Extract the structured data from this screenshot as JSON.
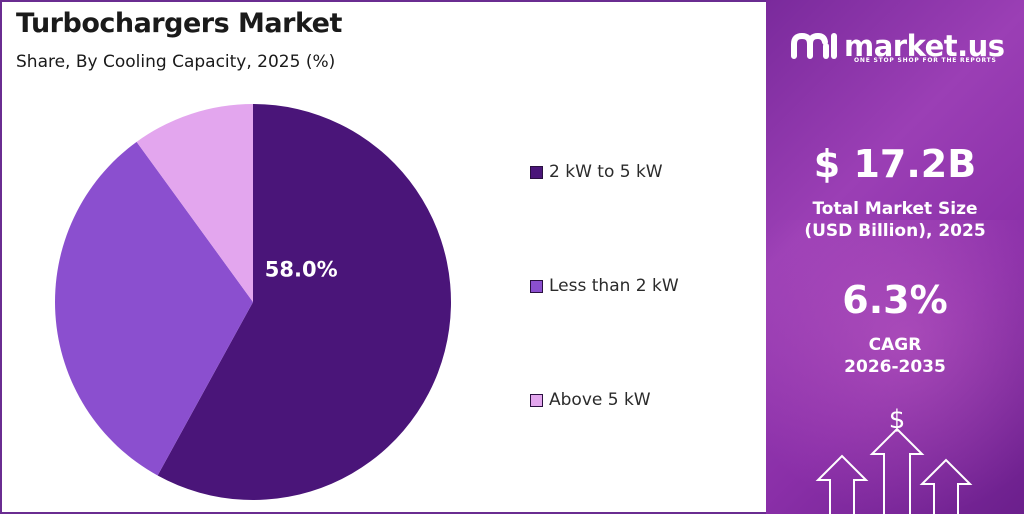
{
  "header": {
    "title": "Turbochargers Market",
    "subtitle": "Share, By Cooling Capacity, 2025 (%)"
  },
  "chart_data": {
    "type": "pie",
    "title": "Turbochargers Market",
    "subtitle": "Share, By Cooling Capacity, 2025 (%)",
    "categories": [
      "2 kW to 5 kW",
      "Less than 2 kW",
      "Above 5 kW"
    ],
    "values": [
      58.0,
      32.0,
      10.0
    ],
    "colors": [
      "#4a1579",
      "#8b4fcf",
      "#e3a6ee"
    ],
    "data_labels": [
      "58.0%",
      "",
      ""
    ],
    "legend": "right",
    "legend_items": [
      "2 kW to 5 kW",
      "Less than 2 kW",
      "Above 5 kW"
    ]
  },
  "sidebar": {
    "brand": "market.us",
    "tagline": "ONE STOP SHOP FOR THE REPORTS",
    "market_size_value": "$ 17.2B",
    "market_size_label_line1": "Total Market Size",
    "market_size_label_line2": "(USD Billion), 2025",
    "cagr_value": "6.3%",
    "cagr_label_line1": "CAGR",
    "cagr_label_line2": "2026-2035",
    "dollar_icon": "dollar-sign",
    "arrow_icons": "up-arrow-outline",
    "accent_color": "#8e35ad"
  }
}
